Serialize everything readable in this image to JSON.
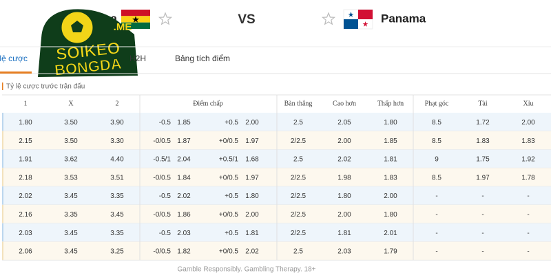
{
  "header": {
    "home_team": "Ghana",
    "vs": "VS",
    "away_team": "Panama"
  },
  "logo": {
    "domain": ".ME",
    "line1": "SOIKEO",
    "line2": "BONGDA"
  },
  "tabs": [
    "Tỷ lệ cược",
    "H2H",
    "Bảng tích điểm"
  ],
  "section_title": "Tỷ lệ cược trước trận đấu",
  "table": {
    "columns": [
      "1",
      "X",
      "2",
      "Điểm chấp",
      "Bàn thắng",
      "Cao hơn",
      "Thấp hơn",
      "Phạt góc",
      "Tài",
      "Xỉu"
    ],
    "rows": [
      [
        "1.80",
        "3.50",
        "3.90",
        "-0.5",
        "1.85",
        "+0.5",
        "2.00",
        "2.5",
        "2.05",
        "1.80",
        "8.5",
        "1.72",
        "2.00"
      ],
      [
        "2.15",
        "3.50",
        "3.30",
        "-0/0.5",
        "1.87",
        "+0/0.5",
        "1.97",
        "2/2.5",
        "2.00",
        "1.85",
        "8.5",
        "1.83",
        "1.83"
      ],
      [
        "1.91",
        "3.62",
        "4.40",
        "-0.5/1",
        "2.04",
        "+0.5/1",
        "1.68",
        "2.5",
        "2.02",
        "1.81",
        "9",
        "1.75",
        "1.92"
      ],
      [
        "2.18",
        "3.53",
        "3.51",
        "-0/0.5",
        "1.84",
        "+0/0.5",
        "1.97",
        "2/2.5",
        "1.98",
        "1.83",
        "8.5",
        "1.97",
        "1.78"
      ],
      [
        "2.02",
        "3.45",
        "3.35",
        "-0.5",
        "2.02",
        "+0.5",
        "1.80",
        "2/2.5",
        "1.80",
        "2.00",
        "-",
        "-",
        "-"
      ],
      [
        "2.16",
        "3.35",
        "3.45",
        "-0/0.5",
        "1.86",
        "+0/0.5",
        "2.00",
        "2/2.5",
        "2.00",
        "1.80",
        "-",
        "-",
        "-"
      ],
      [
        "2.03",
        "3.45",
        "3.35",
        "-0.5",
        "2.03",
        "+0.5",
        "1.81",
        "2/2.5",
        "1.81",
        "2.01",
        "-",
        "-",
        "-"
      ],
      [
        "2.06",
        "3.45",
        "3.25",
        "-0/0.5",
        "1.82",
        "+0/0.5",
        "2.02",
        "2.5",
        "2.03",
        "1.79",
        "-",
        "-",
        "-"
      ]
    ]
  },
  "footer": "Gamble Responsibly. Gambling Therapy. 18+"
}
